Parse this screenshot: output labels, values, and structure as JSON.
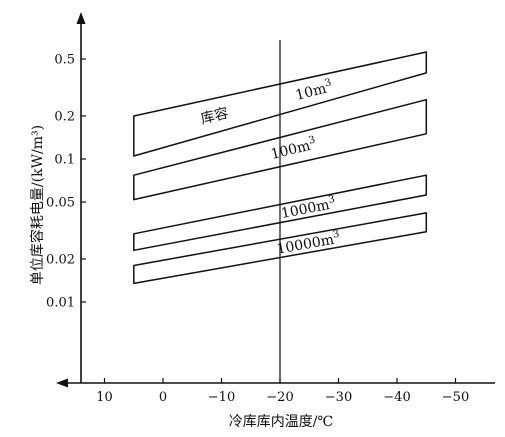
{
  "chart_data": {
    "type": "line",
    "title": "",
    "xlabel": "冷库库内温度/℃",
    "ylabel": "单位库容耗电量/(kW/m³)",
    "x_axis": {
      "reversed": true,
      "xlim": [
        15,
        -52
      ],
      "ticks": [
        {
          "value": 10,
          "label": "10"
        },
        {
          "value": 0,
          "label": "0"
        },
        {
          "value": -10,
          "label": "−10"
        },
        {
          "value": -20,
          "label": "−20"
        },
        {
          "value": -30,
          "label": "−30"
        },
        {
          "value": -40,
          "label": "−40"
        },
        {
          "value": -50,
          "label": "−50"
        }
      ]
    },
    "y_axis": {
      "scale": "log",
      "ylim": [
        0.0045,
        0.85
      ],
      "ticks": [
        {
          "value": 0.01,
          "label": "0.01"
        },
        {
          "value": 0.02,
          "label": "0.02"
        },
        {
          "value": 0.05,
          "label": "0.05"
        },
        {
          "value": 0.1,
          "label": "0.1"
        },
        {
          "value": 0.2,
          "label": "0.2"
        },
        {
          "value": 0.5,
          "label": "0.5"
        }
      ]
    },
    "reference_line": {
      "x": -20
    },
    "grid": false,
    "legend_title": "库容",
    "series": [
      {
        "name": "10m³",
        "label_parts": [
          "10m",
          "3"
        ],
        "x": [
          5,
          -45
        ],
        "upper": [
          0.2,
          0.56
        ],
        "lower": [
          0.105,
          0.4
        ]
      },
      {
        "name": "100m³",
        "label_parts": [
          "100m",
          "3"
        ],
        "x": [
          5,
          -45
        ],
        "upper": [
          0.077,
          0.26
        ],
        "lower": [
          0.052,
          0.15
        ]
      },
      {
        "name": "1000m³",
        "label_parts": [
          "1000m",
          "3"
        ],
        "x": [
          5,
          -45
        ],
        "upper": [
          0.03,
          0.077
        ],
        "lower": [
          0.023,
          0.056
        ]
      },
      {
        "name": "10000m³",
        "label_parts": [
          "10000m",
          "3"
        ],
        "x": [
          5,
          -45
        ],
        "upper": [
          0.018,
          0.042
        ],
        "lower": [
          0.0135,
          0.031
        ]
      }
    ]
  }
}
